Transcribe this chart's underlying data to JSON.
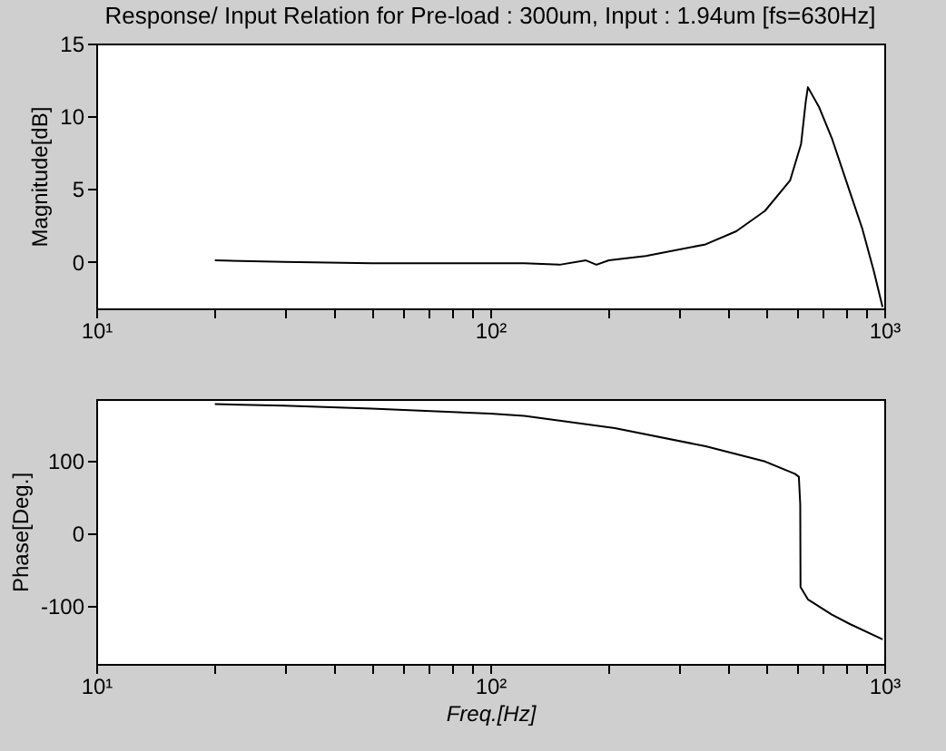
{
  "chart_data": [
    {
      "type": "line",
      "title": "Response/ Input Relation for Pre-load : 300um, Input : 1.94um [fs=630Hz]",
      "ylabel": "Magnitude[dB]",
      "x": [
        20,
        30,
        50,
        100,
        122,
        150,
        175,
        186,
        200,
        248,
        352,
        421,
        498,
        577,
        615,
        632,
        640,
        684,
        736,
        818,
        879,
        940,
        990
      ],
      "series": [
        {
          "color": "#000000",
          "values": [
            0.1,
            0.0,
            -0.1,
            -0.1,
            -0.1,
            -0.2,
            0.1,
            -0.2,
            0.1,
            0.4,
            1.2,
            2.1,
            3.5,
            5.6,
            8.1,
            11,
            12,
            10.6,
            8.5,
            4.8,
            2.3,
            -0.6,
            -3.1
          ]
        }
      ],
      "log": "x",
      "xlim": [
        10,
        1000
      ],
      "ylim": [
        -3.2,
        15
      ],
      "xticks": [
        {
          "value": 10,
          "label": "10¹"
        },
        {
          "value": 20,
          "label": null
        },
        {
          "value": 30,
          "label": null
        },
        {
          "value": 40,
          "label": null
        },
        {
          "value": 50,
          "label": null
        },
        {
          "value": 60,
          "label": null
        },
        {
          "value": 70,
          "label": null
        },
        {
          "value": 80,
          "label": null
        },
        {
          "value": 90,
          "label": null
        },
        {
          "value": 100,
          "label": "10²"
        },
        {
          "value": 200,
          "label": null
        },
        {
          "value": 300,
          "label": null
        },
        {
          "value": 400,
          "label": null
        },
        {
          "value": 500,
          "label": null
        },
        {
          "value": 600,
          "label": null
        },
        {
          "value": 700,
          "label": null
        },
        {
          "value": 800,
          "label": null
        },
        {
          "value": 900,
          "label": null
        },
        {
          "value": 1000,
          "label": "10³"
        }
      ],
      "yticks": [
        0,
        5,
        10,
        15
      ]
    },
    {
      "type": "line",
      "xlabel": "Freq.[Hz]",
      "ylabel": "Phase[Deg.]",
      "x": [
        20,
        30,
        50,
        100,
        122,
        207,
        352,
        498,
        593,
        607,
        612,
        613,
        640,
        736,
        818,
        990
      ],
      "series": [
        {
          "color": "#000000",
          "values": [
            178,
            176,
            172,
            165,
            162,
            145,
            120,
            99,
            82,
            78,
            40,
            -74,
            -91,
            -112,
            -125,
            -146
          ]
        }
      ],
      "log": "x",
      "xlim": [
        10,
        1000
      ],
      "ylim": [
        -180,
        185
      ],
      "xticks": [
        {
          "value": 10,
          "label": "10¹"
        },
        {
          "value": 20,
          "label": null
        },
        {
          "value": 30,
          "label": null
        },
        {
          "value": 40,
          "label": null
        },
        {
          "value": 50,
          "label": null
        },
        {
          "value": 60,
          "label": null
        },
        {
          "value": 70,
          "label": null
        },
        {
          "value": 80,
          "label": null
        },
        {
          "value": 90,
          "label": null
        },
        {
          "value": 100,
          "label": "10²"
        },
        {
          "value": 200,
          "label": null
        },
        {
          "value": 300,
          "label": null
        },
        {
          "value": 400,
          "label": null
        },
        {
          "value": 500,
          "label": null
        },
        {
          "value": 600,
          "label": null
        },
        {
          "value": 700,
          "label": null
        },
        {
          "value": 800,
          "label": null
        },
        {
          "value": 900,
          "label": null
        },
        {
          "value": 1000,
          "label": "10³"
        }
      ],
      "yticks": [
        -100,
        0,
        100
      ]
    }
  ]
}
